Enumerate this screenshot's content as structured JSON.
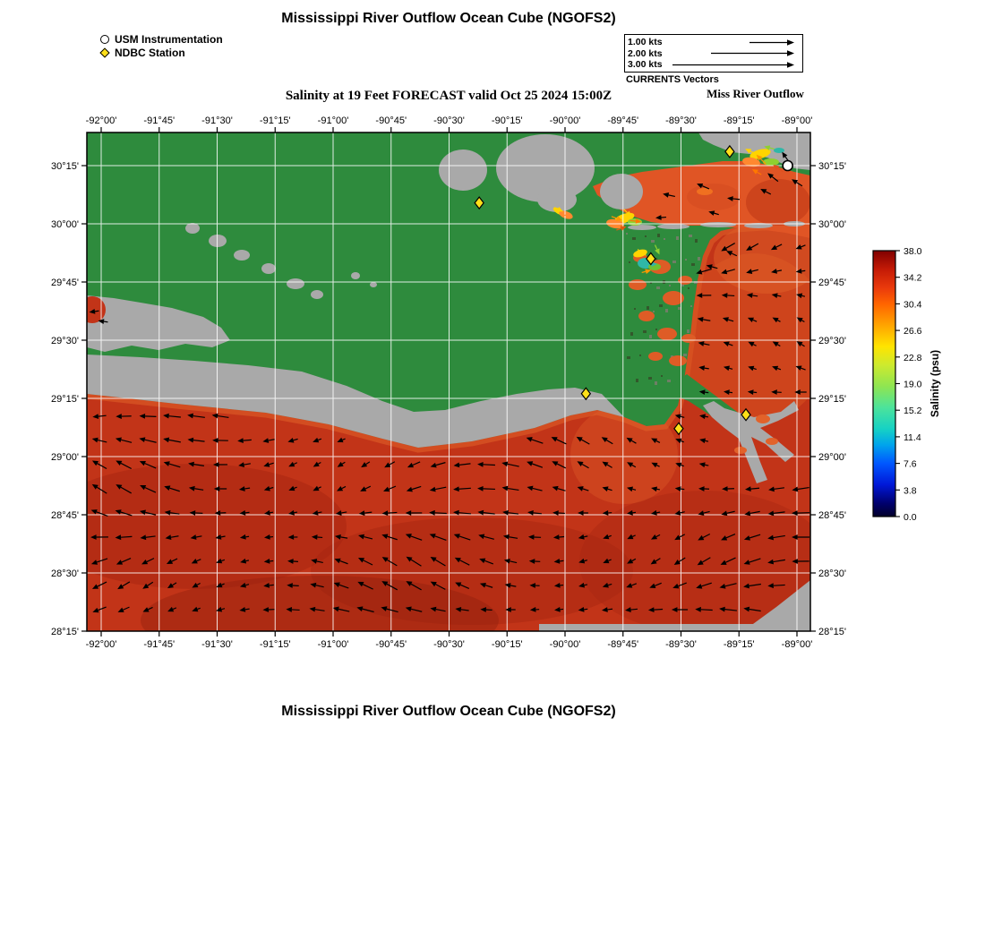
{
  "page": {
    "title": "Mississippi River Outflow Ocean Cube (NGOFS2)",
    "subtitle": "Salinity at 19 Feet FORECAST valid Oct 25 2024 15:00Z",
    "bottom_title": "Mississippi River Outflow Ocean Cube (NGOFS2)"
  },
  "legend": {
    "usm_label": "USM Instrumentation",
    "ndbc_label": "NDBC Station"
  },
  "currents_legend": {
    "title": "CURRENTS Vectors",
    "region_label": "Miss River Outflow",
    "items": [
      {
        "label": "1.00 kts",
        "kts": 1.0
      },
      {
        "label": "2.00 kts",
        "kts": 2.0
      },
      {
        "label": "3.00 kts",
        "kts": 3.0
      }
    ]
  },
  "colorbar": {
    "label": "Salinity (psu)",
    "tick_labels": [
      "38.0",
      "34.2",
      "30.4",
      "26.6",
      "22.8",
      "19.0",
      "15.2",
      "11.4",
      "7.6",
      "3.8",
      "0.0"
    ]
  },
  "axes": {
    "lon_tick_labels": [
      "-92°00'",
      "-91°45'",
      "-91°30'",
      "-91°15'",
      "-91°00'",
      "-90°45'",
      "-90°30'",
      "-90°15'",
      "-90°00'",
      "-89°45'",
      "-89°30'",
      "-89°15'",
      "-89°00'"
    ],
    "lat_tick_labels": [
      "30°15'",
      "30°00'",
      "29°45'",
      "29°30'",
      "29°15'",
      "29°00'",
      "28°45'",
      "28°30'",
      "28°15'"
    ]
  },
  "colors": {
    "land_green": "#2e8b3d",
    "land_gray": "#a9a9a9",
    "gulf_red": "#c23418",
    "sound_orange": "#e05525",
    "station_yellow": "#ffe01a",
    "grid_white": "#ffffff"
  },
  "chart_data": {
    "type": "heatmap",
    "title": "Salinity at 19 Feet FORECAST valid Oct 25 2024 15:00Z",
    "model": "NGOFS2",
    "region": "Miss River Outflow",
    "variable": "Salinity",
    "units": "psu",
    "depth_feet": 19,
    "valid_time": "Oct 25 2024 15:00Z",
    "lon_range_deg": [
      -92.0,
      -89.0
    ],
    "lat_range_deg": [
      28.25,
      30.4
    ],
    "tick_interval_min": 15,
    "lon_ticks_deg": [
      -92.0,
      -91.75,
      -91.5,
      -91.25,
      -91.0,
      -90.75,
      -90.5,
      -90.25,
      -90.0,
      -89.75,
      -89.5,
      -89.25,
      -89.0
    ],
    "lat_ticks_deg": [
      30.25,
      30.0,
      29.75,
      29.5,
      29.25,
      29.0,
      28.75,
      28.5,
      28.25
    ],
    "colorbar": {
      "min": 0.0,
      "max": 38.0,
      "interval": 3.8,
      "label": "Salinity (psu)",
      "colormap": "jet",
      "tick_values": [
        38.0,
        34.2,
        30.4,
        26.6,
        22.8,
        19.0,
        15.2,
        11.4,
        7.6,
        3.8,
        0.0
      ]
    },
    "current_vector_legend_kts": [
      1.0,
      2.0,
      3.0
    ],
    "stations": {
      "usm_instrumentation": [
        {
          "lon": -89.04,
          "lat": 30.25
        }
      ],
      "ndbc": [
        {
          "lon": -89.29,
          "lat": 30.31
        },
        {
          "lon": -90.37,
          "lat": 30.09
        },
        {
          "lon": -89.63,
          "lat": 29.85
        },
        {
          "lon": -89.91,
          "lat": 29.27
        },
        {
          "lon": -89.51,
          "lat": 29.12
        },
        {
          "lon": -89.22,
          "lat": 29.18
        }
      ]
    },
    "field_summary": {
      "open_gulf_salinity_psu": 34,
      "mississippi_sound_salinity_psu": 30,
      "river_plume_salinity_psu": 15,
      "currents_direction": "predominantly westward",
      "typical_current_speed_kts": 1.5
    }
  }
}
